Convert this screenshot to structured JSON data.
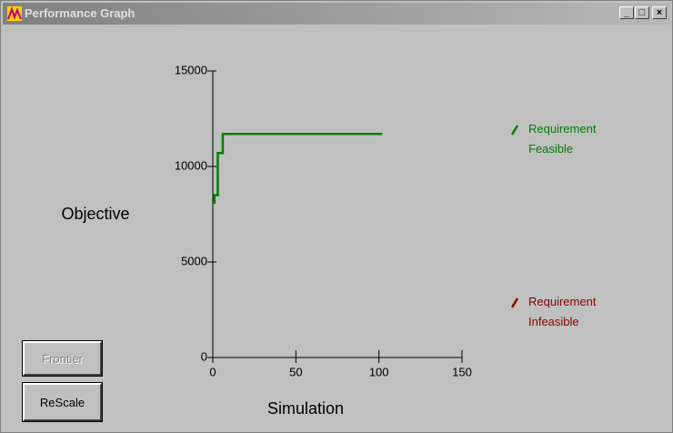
{
  "window": {
    "title": "Performance Graph"
  },
  "buttons": [
    "Frontier",
    "ReScale"
  ],
  "chart_data": {
    "type": "line",
    "x_label": "Simulation",
    "y_label": "Objective",
    "xlim": [
      0,
      150
    ],
    "xticks": [
      0,
      50,
      100,
      150
    ],
    "ylim": [
      0,
      15000
    ],
    "yticks": [
      0,
      5000,
      10000,
      15000
    ],
    "series": [
      {
        "name": "Requirement Feasible",
        "color": "#008000",
        "x": [
          0,
          1,
          1,
          3,
          3,
          6,
          6,
          102
        ],
        "values": [
          8100,
          8100,
          8500,
          8500,
          10700,
          10700,
          11700,
          11700
        ]
      },
      {
        "name": "Requirement Infeasible",
        "color": "#8b0000",
        "x": [],
        "values": []
      }
    ]
  }
}
